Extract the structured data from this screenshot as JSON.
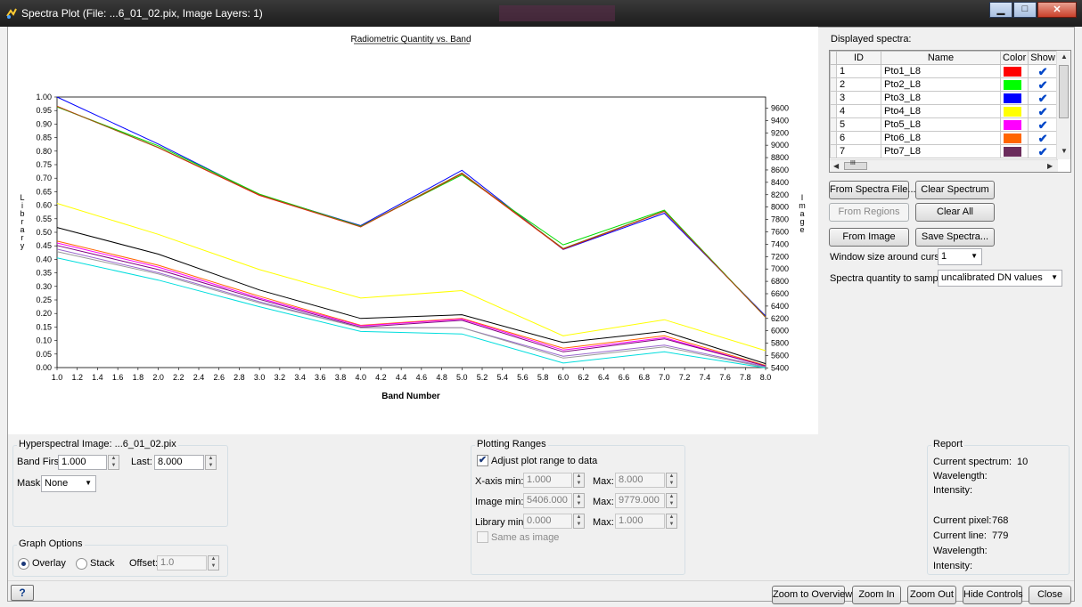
{
  "window": {
    "title": "Spectra Plot  (File: ...6_01_02.pix, Image Layers: 1)"
  },
  "chart_data": {
    "type": "line",
    "title": "Radiometric Quantity vs. Band",
    "xlabel": "Band Number",
    "ylabel_left": "Library",
    "ylabel_right": "Image",
    "xlim": [
      1.0,
      8.0
    ],
    "ylim_left": [
      0.0,
      1.0
    ],
    "ylim_right": [
      5406,
      9779
    ],
    "x": [
      1.0,
      2.0,
      3.0,
      4.0,
      5.0,
      6.0,
      7.0,
      8.0
    ],
    "x_ticks": [
      "1.0",
      "1.2",
      "1.4",
      "1.6",
      "1.8",
      "2.0",
      "2.2",
      "2.4",
      "2.6",
      "2.8",
      "3.0",
      "3.2",
      "3.4",
      "3.6",
      "3.8",
      "4.0",
      "4.2",
      "4.4",
      "4.6",
      "4.8",
      "5.0",
      "5.2",
      "5.4",
      "5.6",
      "5.8",
      "6.0",
      "6.2",
      "6.4",
      "6.6",
      "6.8",
      "7.0",
      "7.2",
      "7.4",
      "7.6",
      "7.8",
      "8.0"
    ],
    "y_left_ticks": [
      "0.00",
      "0.05",
      "0.10",
      "0.15",
      "0.20",
      "0.25",
      "0.30",
      "0.35",
      "0.40",
      "0.45",
      "0.50",
      "0.55",
      "0.60",
      "0.65",
      "0.70",
      "0.75",
      "0.80",
      "0.85",
      "0.90",
      "0.95",
      "1.00"
    ],
    "y_right_ticks": [
      "5400",
      "5600",
      "5800",
      "6000",
      "6200",
      "6400",
      "6600",
      "6800",
      "7000",
      "7200",
      "7400",
      "7600",
      "7800",
      "8000",
      "8200",
      "8400",
      "8600",
      "8800",
      "9000",
      "9200",
      "9400",
      "9600"
    ],
    "series": [
      {
        "color": "#0000ff",
        "values": [
          9779,
          9020,
          8200,
          7700,
          8595,
          7315,
          7900,
          6240
        ]
      },
      {
        "color": "#00dd00",
        "values": [
          9620,
          8990,
          8210,
          7690,
          8520,
          7390,
          7950,
          6220
        ]
      },
      {
        "color": "#ff0000",
        "values": [
          9630,
          8960,
          8190,
          7680,
          8540,
          7320,
          7930,
          6220
        ]
      },
      {
        "color": "#8b6914",
        "values": [
          9625,
          8965,
          8200,
          7685,
          8550,
          7330,
          7935,
          6225
        ]
      },
      {
        "color": "#ffff00",
        "values": [
          8060,
          7560,
          6990,
          6530,
          6650,
          5920,
          6180,
          5680
        ]
      },
      {
        "color": "#000000",
        "values": [
          7670,
          7240,
          6660,
          6200,
          6260,
          5810,
          5990,
          5470
        ]
      },
      {
        "color": "#ff6600",
        "values": [
          7450,
          7060,
          6560,
          6090,
          6200,
          5720,
          5920,
          5440
        ]
      },
      {
        "color": "#ff00ff",
        "values": [
          7420,
          7030,
          6530,
          6080,
          6190,
          5690,
          5890,
          5430
        ]
      },
      {
        "color": "#800080",
        "values": [
          7380,
          6990,
          6510,
          6060,
          6170,
          5660,
          5870,
          5430
        ]
      },
      {
        "color": "#9966cc",
        "values": [
          7320,
          6940,
          6470,
          6050,
          6050,
          5590,
          5770,
          5420
        ]
      },
      {
        "color": "#999999",
        "values": [
          7280,
          6920,
          6450,
          6050,
          6050,
          5560,
          5740,
          5410
        ]
      },
      {
        "color": "#00dddd",
        "values": [
          7180,
          6820,
          6390,
          5990,
          5950,
          5480,
          5660,
          5400
        ]
      }
    ]
  },
  "spectra": {
    "label": "Displayed spectra:",
    "columns": [
      "ID",
      "Name",
      "Color",
      "Show"
    ],
    "rows": [
      {
        "id": "1",
        "name": "Pto1_L8",
        "color": "#ff0000"
      },
      {
        "id": "2",
        "name": "Pto2_L8",
        "color": "#00ff00"
      },
      {
        "id": "3",
        "name": "Pto3_L8",
        "color": "#0000ff"
      },
      {
        "id": "4",
        "name": "Pto4_L8",
        "color": "#ffff00"
      },
      {
        "id": "5",
        "name": "Pto5_L8",
        "color": "#ff00ff"
      },
      {
        "id": "6",
        "name": "Pto6_L8",
        "color": "#ff6600"
      },
      {
        "id": "7",
        "name": "Pto7_L8",
        "color": "#6b2c5c"
      }
    ],
    "check_glyph": "✔",
    "hscroll_glyph": "III"
  },
  "buttons": {
    "from_spectra_file": "From Spectra File...",
    "clear_spectrum": "Clear Spectrum",
    "from_regions": "From Regions",
    "clear_all": "Clear All",
    "from_image": "From Image",
    "save_spectra": "Save Spectra...",
    "zoom_overview": "Zoom to Overview",
    "zoom_in": "Zoom In",
    "zoom_out": "Zoom Out",
    "hide_controls": "Hide Controls",
    "close": "Close"
  },
  "sampling": {
    "window_label": "Window size around cursor:",
    "window_value": "1",
    "quantity_label": "Spectra quantity to sample:",
    "quantity_value": "uncalibrated DN values"
  },
  "hyperspectral": {
    "title": "Hyperspectral Image: ...6_01_02.pix",
    "band_first_label": "Band First:",
    "band_first": "1.000",
    "last_label": "Last:",
    "last": "8.000",
    "mask_label": "Mask:",
    "mask": "None"
  },
  "graph_options": {
    "title": "Graph Options",
    "overlay": "Overlay",
    "stack": "Stack",
    "offset_label": "Offset:",
    "offset": "1.0"
  },
  "plotting_ranges": {
    "title": "Plotting Ranges",
    "adjust_label": "Adjust plot range to data",
    "xaxis_min_label": "X-axis min:",
    "xaxis_min": "1.000",
    "xaxis_max": "8.000",
    "image_min_label": "Image min:",
    "image_min": "5406.000",
    "image_max": "9779.000",
    "library_min_label": "Library min:",
    "library_min": "0.000",
    "library_max": "1.000",
    "max_label": "Max:",
    "same_as_image": "Same as image"
  },
  "report": {
    "title": "Report",
    "current_spectrum_label": "Current spectrum:",
    "current_spectrum": "10",
    "wavelength_label": "Wavelength:",
    "intensity_label": "Intensity:",
    "current_pixel_label": "Current pixel:",
    "current_pixel": "768",
    "current_line_label": "Current line:",
    "current_line": "779"
  },
  "help_glyph": "?"
}
